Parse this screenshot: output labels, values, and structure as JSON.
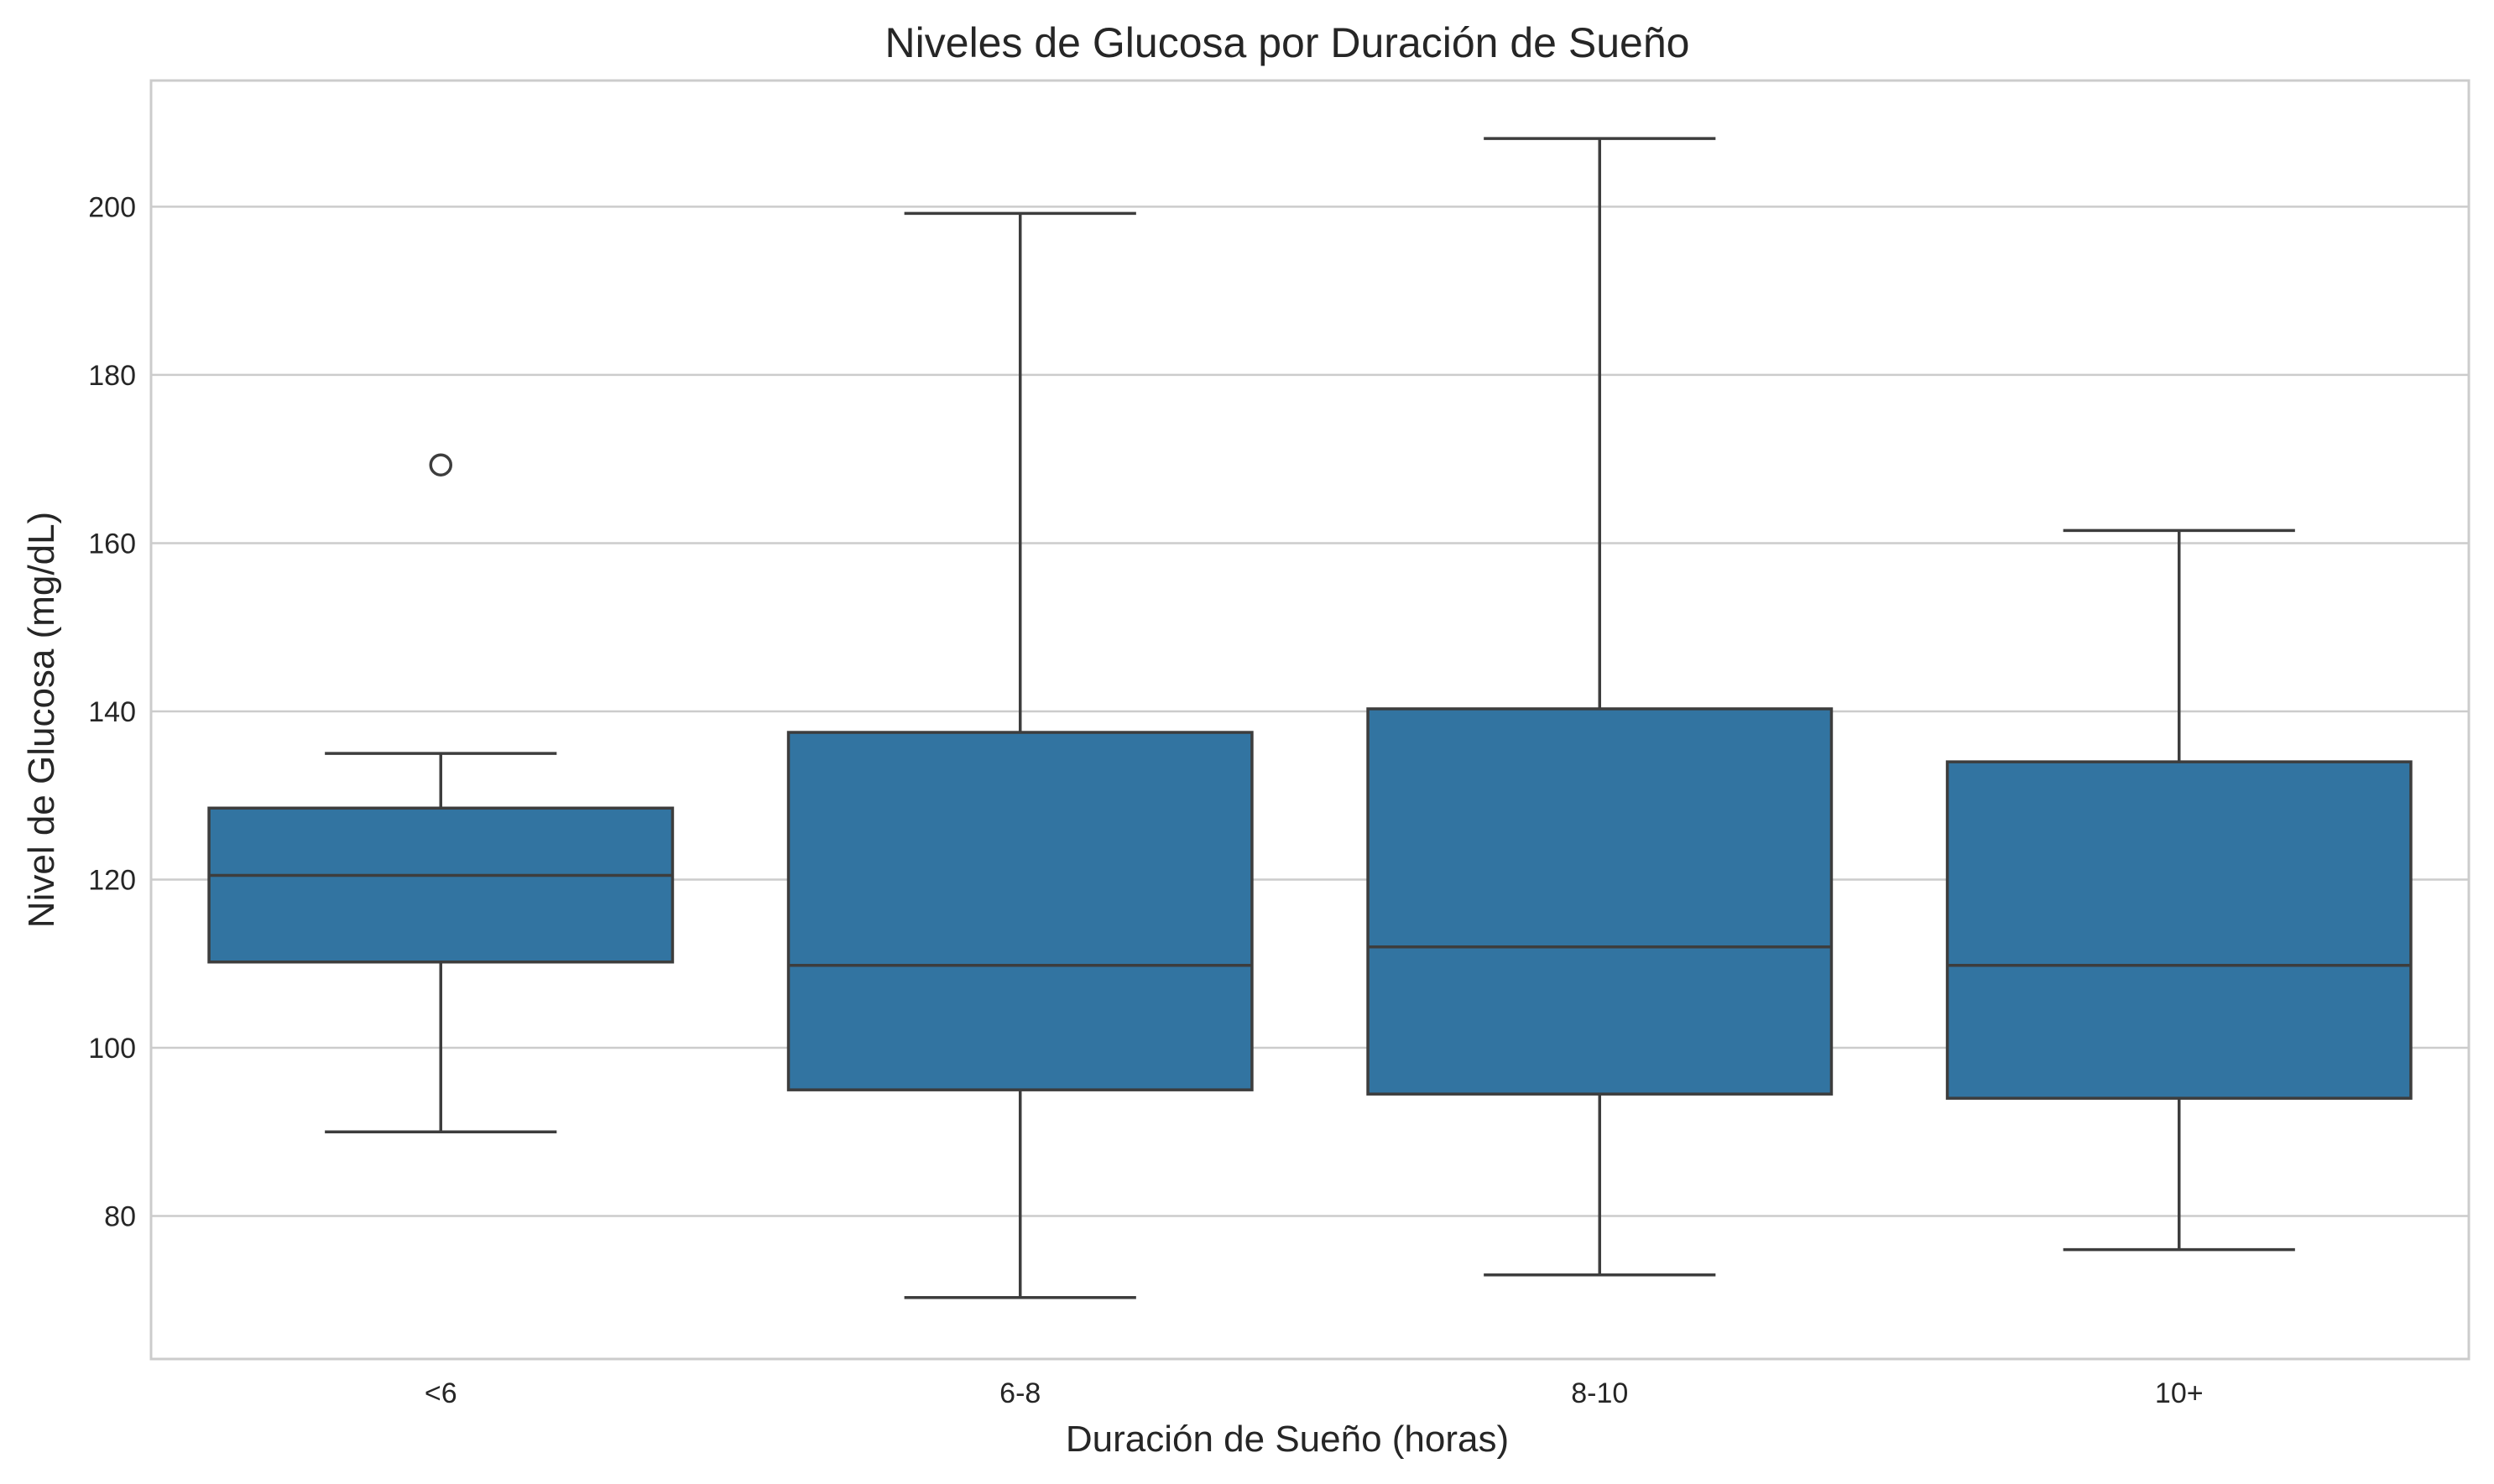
{
  "chart_data": {
    "type": "box",
    "title": "Niveles de Glucosa por Duración de Sueño",
    "xlabel": "Duración de Sueño (horas)",
    "ylabel": "Nivel de Glucosa (mg/dL)",
    "categories": [
      "<6",
      "6-8",
      "8-10",
      "10+"
    ],
    "y_ticks": [
      "80",
      "100",
      "120",
      "140",
      "160",
      "180",
      "200"
    ],
    "ylim": [
      63,
      215
    ],
    "grid": true,
    "box_color": "#3274a1",
    "line_color": "#3d3d3d",
    "boxes": [
      {
        "category": "<6",
        "whisker_low": 90.0,
        "q1": 110.2,
        "median": 120.5,
        "q3": 128.5,
        "whisker_high": 135.0,
        "outliers": [
          169.3
        ]
      },
      {
        "category": "6-8",
        "whisker_low": 70.3,
        "q1": 95.0,
        "median": 109.8,
        "q3": 137.5,
        "whisker_high": 199.2,
        "outliers": []
      },
      {
        "category": "8-10",
        "whisker_low": 73.0,
        "q1": 94.5,
        "median": 112.0,
        "q3": 140.3,
        "whisker_high": 208.1,
        "outliers": []
      },
      {
        "category": "10+",
        "whisker_low": 76.0,
        "q1": 94.0,
        "median": 109.8,
        "q3": 134.0,
        "whisker_high": 161.5,
        "outliers": []
      }
    ]
  }
}
